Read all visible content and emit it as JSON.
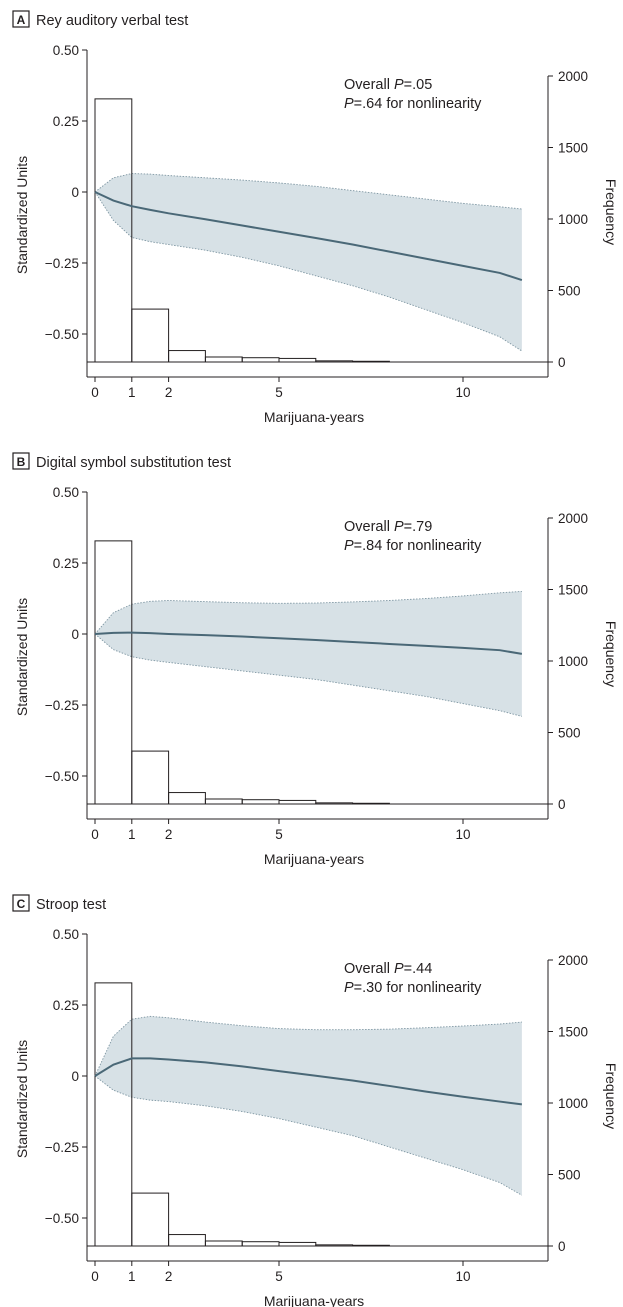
{
  "chart_data": [
    {
      "type": "line",
      "panel_letter": "A",
      "title": "Rey auditory verbal test",
      "xlabel": "Marijuana-years",
      "ylabel": "Standardized Units",
      "y2label": "Frequency",
      "annotation_line1_prefix": "Overall ",
      "annotation_line1_value": "=.05",
      "annotation_line2_value": "=.64 for nonlinearity",
      "xlim": [
        -0.3,
        12.3
      ],
      "ylim": [
        -0.6,
        0.5
      ],
      "y2lim": [
        0,
        2000
      ],
      "xticks": [
        0,
        1,
        2,
        5,
        10
      ],
      "yticks": [
        -0.5,
        -0.25,
        0,
        0.25,
        0.5
      ],
      "ytick_labels": [
        "−0.50",
        "−0.25",
        "0",
        "0.25",
        "0.50"
      ],
      "y2ticks": [
        0,
        500,
        1000,
        1500,
        2000
      ],
      "series": [
        {
          "x": [
            0,
            0.5,
            1,
            1.5,
            2,
            3,
            4,
            5,
            6,
            7,
            8,
            9,
            10,
            11,
            11.6
          ],
          "y": [
            0,
            -0.03,
            -0.05,
            -0.063,
            -0.075,
            -0.096,
            -0.118,
            -0.14,
            -0.162,
            -0.185,
            -0.21,
            -0.235,
            -0.26,
            -0.285,
            -0.31
          ]
        }
      ],
      "ci_band": {
        "x": [
          0,
          0.5,
          1,
          1.5,
          2,
          3,
          4,
          5,
          6,
          7,
          8,
          9,
          10,
          11,
          11.6
        ],
        "lower": [
          0,
          -0.1,
          -0.16,
          -0.175,
          -0.185,
          -0.205,
          -0.23,
          -0.26,
          -0.295,
          -0.33,
          -0.37,
          -0.415,
          -0.46,
          -0.51,
          -0.56
        ],
        "upper": [
          0,
          0.05,
          0.065,
          0.063,
          0.058,
          0.05,
          0.042,
          0.032,
          0.02,
          0.005,
          -0.01,
          -0.025,
          -0.04,
          -0.052,
          -0.06
        ]
      },
      "histogram": {
        "bins": [
          [
            0,
            1
          ],
          [
            1,
            2
          ],
          [
            2,
            3
          ],
          [
            3,
            4
          ],
          [
            4,
            5
          ],
          [
            5,
            6
          ],
          [
            6,
            7
          ],
          [
            7,
            8
          ]
        ],
        "frequency": [
          1840,
          370,
          80,
          35,
          30,
          25,
          8,
          5
        ]
      }
    },
    {
      "type": "line",
      "panel_letter": "B",
      "title": "Digital symbol substitution test",
      "xlabel": "Marijuana-years",
      "ylabel": "Standardized Units",
      "y2label": "Frequency",
      "annotation_line1_prefix": "Overall ",
      "annotation_line1_value": "=.79",
      "annotation_line2_value": "=.84 for nonlinearity",
      "xlim": [
        -0.3,
        12.3
      ],
      "ylim": [
        -0.6,
        0.5
      ],
      "y2lim": [
        0,
        2000
      ],
      "xticks": [
        0,
        1,
        2,
        5,
        10
      ],
      "yticks": [
        -0.5,
        -0.25,
        0,
        0.25,
        0.5
      ],
      "ytick_labels": [
        "−0.50",
        "−0.25",
        "0",
        "0.25",
        "0.50"
      ],
      "y2ticks": [
        0,
        500,
        1000,
        1500,
        2000
      ],
      "series": [
        {
          "x": [
            0,
            0.5,
            1,
            1.5,
            2,
            3,
            4,
            5,
            6,
            7,
            8,
            9,
            10,
            11,
            11.6
          ],
          "y": [
            0,
            0.004,
            0.005,
            0.003,
            0,
            -0.004,
            -0.009,
            -0.015,
            -0.021,
            -0.028,
            -0.035,
            -0.042,
            -0.049,
            -0.057,
            -0.07
          ]
        }
      ],
      "ci_band": {
        "x": [
          0,
          0.5,
          1,
          1.5,
          2,
          3,
          4,
          5,
          6,
          7,
          8,
          9,
          10,
          11,
          11.6
        ],
        "lower": [
          0,
          -0.055,
          -0.08,
          -0.092,
          -0.1,
          -0.115,
          -0.13,
          -0.145,
          -0.16,
          -0.18,
          -0.2,
          -0.22,
          -0.245,
          -0.27,
          -0.29
        ],
        "upper": [
          0,
          0.075,
          0.105,
          0.115,
          0.118,
          0.114,
          0.11,
          0.108,
          0.109,
          0.113,
          0.118,
          0.125,
          0.134,
          0.145,
          0.15
        ]
      },
      "histogram": {
        "bins": [
          [
            0,
            1
          ],
          [
            1,
            2
          ],
          [
            2,
            3
          ],
          [
            3,
            4
          ],
          [
            4,
            5
          ],
          [
            5,
            6
          ],
          [
            6,
            7
          ],
          [
            7,
            8
          ]
        ],
        "frequency": [
          1840,
          370,
          80,
          35,
          30,
          25,
          8,
          5
        ]
      }
    },
    {
      "type": "line",
      "panel_letter": "C",
      "title": "Stroop test",
      "xlabel": "Marijuana-years",
      "ylabel": "Standardized Units",
      "y2label": "Frequency",
      "annotation_line1_prefix": "Overall ",
      "annotation_line1_value": "=.44",
      "annotation_line2_value": "=.30 for nonlinearity",
      "xlim": [
        -0.3,
        12.3
      ],
      "ylim": [
        -0.6,
        0.5
      ],
      "y2lim": [
        0,
        2000
      ],
      "xticks": [
        0,
        1,
        2,
        5,
        10
      ],
      "yticks": [
        -0.5,
        -0.25,
        0,
        0.25,
        0.5
      ],
      "ytick_labels": [
        "−0.50",
        "−0.25",
        "0",
        "0.25",
        "0.50"
      ],
      "y2ticks": [
        0,
        500,
        1000,
        1500,
        2000
      ],
      "series": [
        {
          "x": [
            0,
            0.5,
            1,
            1.5,
            2,
            3,
            4,
            5,
            6,
            7,
            8,
            9,
            10,
            11,
            11.6
          ],
          "y": [
            0,
            0.04,
            0.062,
            0.062,
            0.058,
            0.048,
            0.034,
            0.017,
            0.001,
            -0.016,
            -0.035,
            -0.055,
            -0.073,
            -0.09,
            -0.1
          ]
        }
      ],
      "ci_band": {
        "x": [
          0,
          0.5,
          1,
          1.5,
          2,
          3,
          4,
          5,
          6,
          7,
          8,
          9,
          10,
          11,
          11.6
        ],
        "lower": [
          0,
          -0.05,
          -0.075,
          -0.085,
          -0.09,
          -0.105,
          -0.125,
          -0.15,
          -0.18,
          -0.21,
          -0.25,
          -0.29,
          -0.33,
          -0.375,
          -0.42
        ],
        "upper": [
          0,
          0.14,
          0.2,
          0.21,
          0.205,
          0.19,
          0.177,
          0.167,
          0.163,
          0.163,
          0.165,
          0.17,
          0.176,
          0.183,
          0.19
        ]
      },
      "histogram": {
        "bins": [
          [
            0,
            1
          ],
          [
            1,
            2
          ],
          [
            2,
            3
          ],
          [
            3,
            4
          ],
          [
            4,
            5
          ],
          [
            5,
            6
          ],
          [
            6,
            7
          ],
          [
            7,
            8
          ]
        ],
        "frequency": [
          1840,
          370,
          80,
          35,
          30,
          25,
          8,
          5
        ]
      }
    }
  ],
  "colors": {
    "band_fill": "#d7e1e6",
    "band_edge": "#7f97a3",
    "line": "#4a6877",
    "axis": "#231f20",
    "bar_fill": "#ffffff",
    "bar_edge": "#231f20"
  }
}
